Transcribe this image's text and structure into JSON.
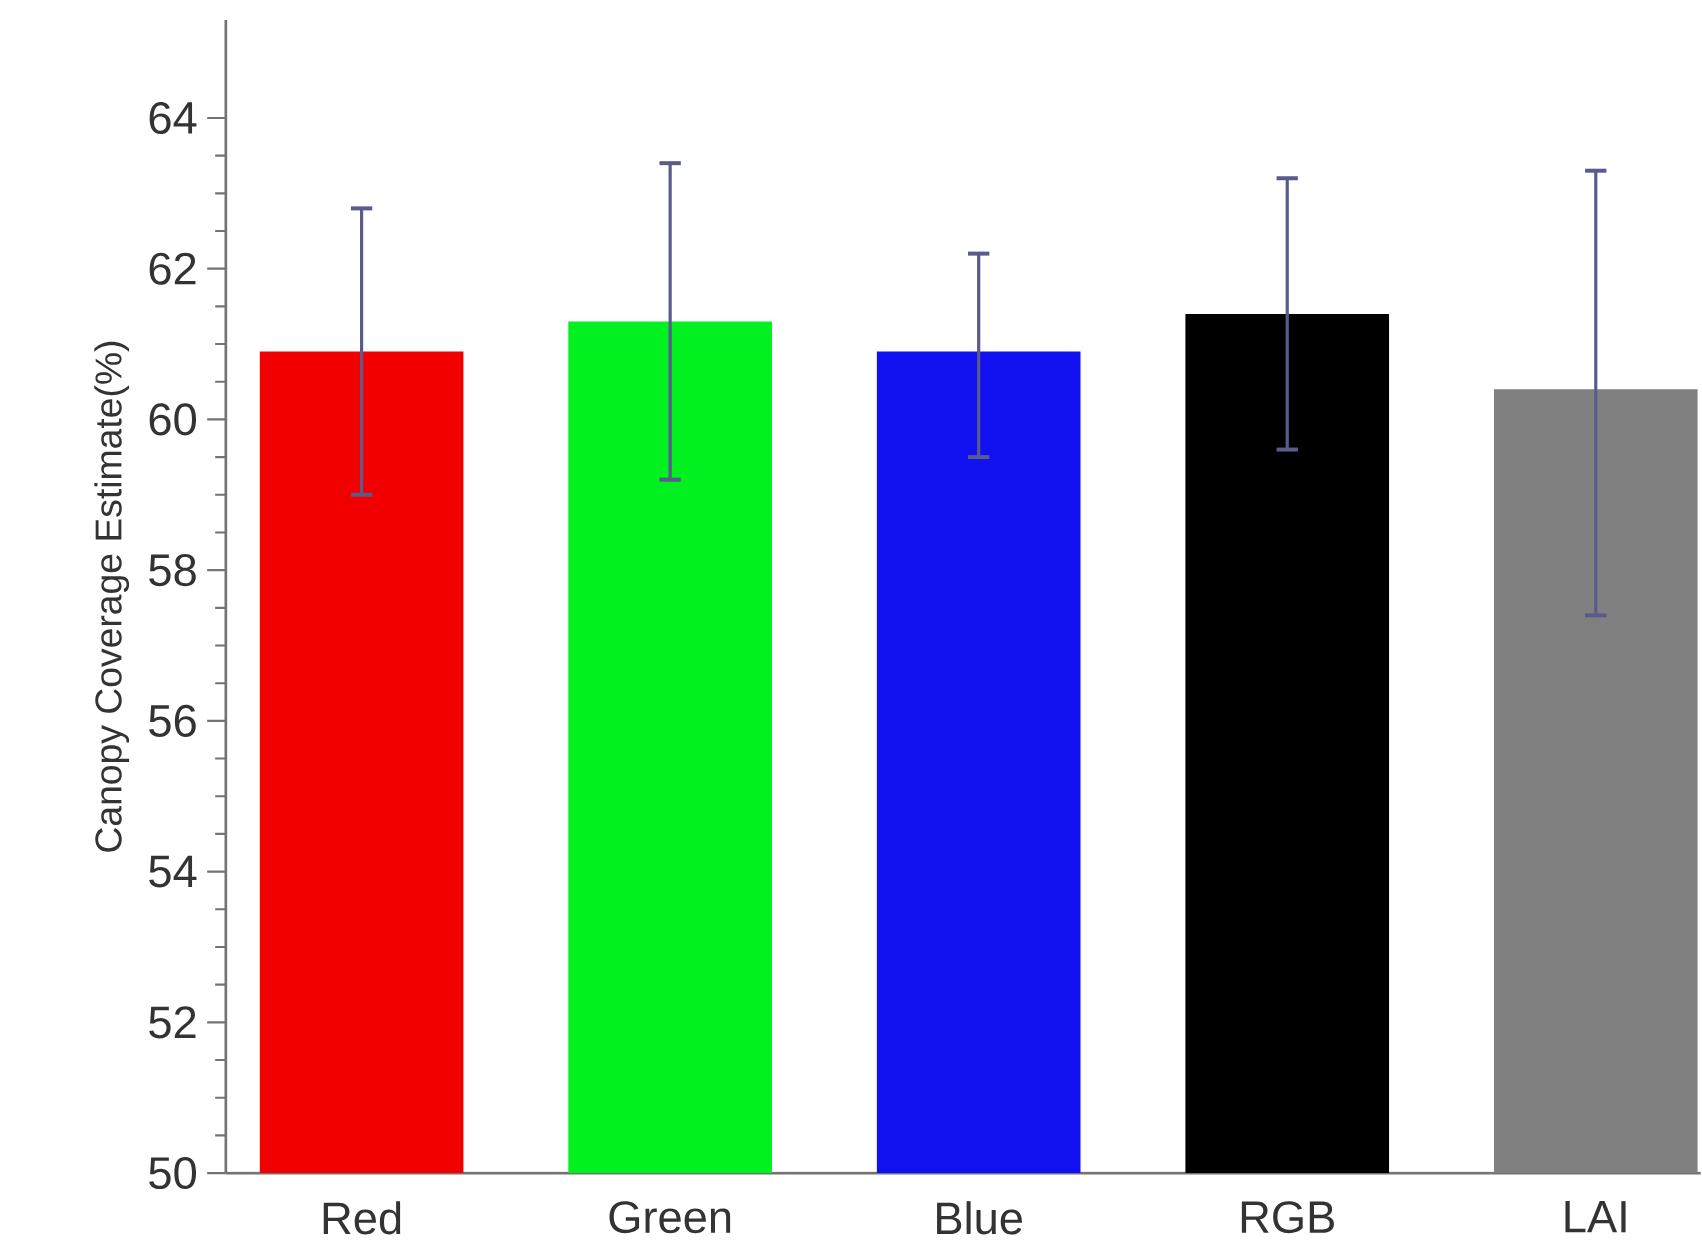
{
  "chart_data": {
    "type": "bar",
    "ylabel": "Canopy Coverage Estimate(%)",
    "categories": [
      "Red",
      "Green",
      "Blue",
      "RGB",
      "LAI"
    ],
    "values": [
      60.9,
      61.3,
      60.9,
      61.4,
      60.4
    ],
    "colors": [
      "#f20000",
      "#00f020",
      "#1010f0",
      "#000000",
      "#808080"
    ],
    "errors": [
      [
        59.0,
        62.8
      ],
      [
        59.2,
        63.4
      ],
      [
        59.5,
        62.2
      ],
      [
        59.6,
        63.2
      ],
      [
        57.4,
        63.3
      ]
    ],
    "ylim": [
      50,
      65.3
    ],
    "yticks": [
      50,
      52,
      54,
      56,
      58,
      60,
      62,
      64
    ]
  }
}
